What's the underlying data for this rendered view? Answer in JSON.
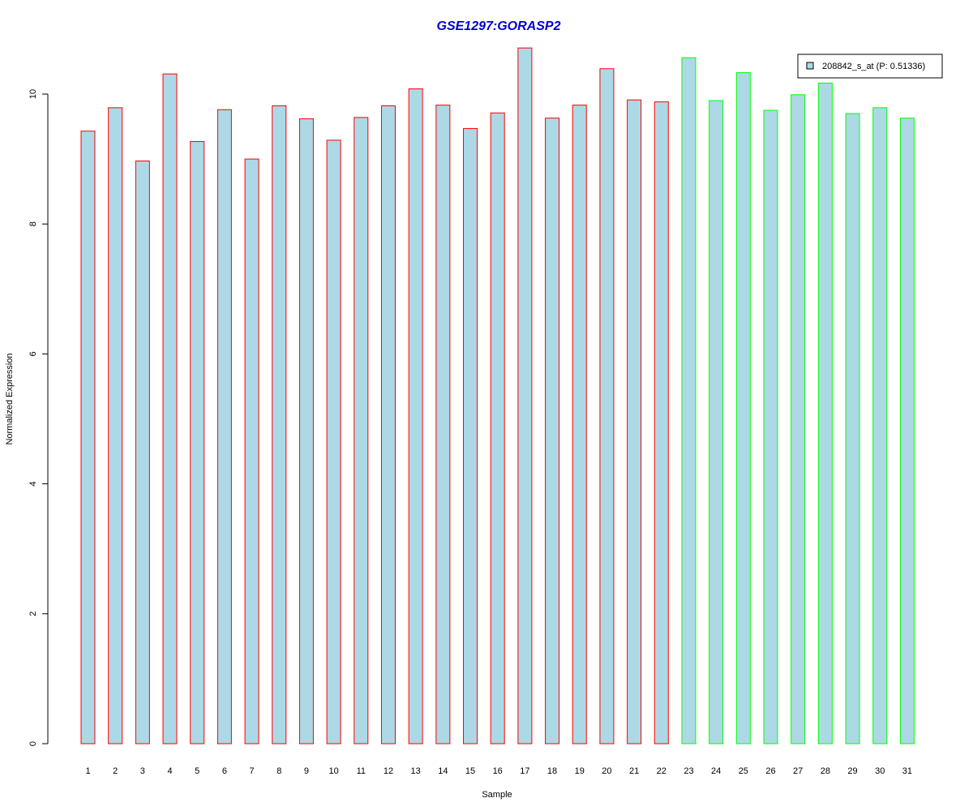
{
  "chart_data": {
    "type": "bar",
    "title": "GSE1297:GORASP2",
    "xlabel": "Sample",
    "ylabel": "Normalized Expression",
    "ylim": [
      0,
      10.8
    ],
    "yticks": [
      "0",
      "2",
      "4",
      "6",
      "8",
      "10"
    ],
    "categories": [
      "1",
      "2",
      "3",
      "4",
      "5",
      "6",
      "7",
      "8",
      "9",
      "10",
      "11",
      "12",
      "13",
      "14",
      "15",
      "16",
      "17",
      "18",
      "19",
      "20",
      "21",
      "22",
      "23",
      "24",
      "25",
      "26",
      "27",
      "28",
      "29",
      "30",
      "31"
    ],
    "series": [
      {
        "name": "208842_s_at (P: 0.51336)",
        "values": [
          9.43,
          9.79,
          8.97,
          10.31,
          9.27,
          9.76,
          9.0,
          9.82,
          9.62,
          9.29,
          9.64,
          9.82,
          10.08,
          9.83,
          9.47,
          9.71,
          10.71,
          9.63,
          9.83,
          10.39,
          9.91,
          9.88,
          10.56,
          9.9,
          10.33,
          9.75,
          9.99,
          10.17,
          9.7,
          9.79,
          9.63
        ]
      }
    ],
    "bar_groups": [
      "red",
      "red",
      "red",
      "red",
      "red",
      "red",
      "red",
      "red",
      "red",
      "red",
      "red",
      "red",
      "red",
      "red",
      "red",
      "red",
      "red",
      "red",
      "red",
      "red",
      "red",
      "red",
      "green",
      "green",
      "green",
      "green",
      "green",
      "green",
      "green",
      "green",
      "green"
    ],
    "legend_position": "top-right",
    "colors": {
      "bar_fill": "#ADD8E6",
      "outline_group_1": "#FF0000",
      "outline_group_2": "#00FF00",
      "title": "#0000CD",
      "axis": "#000000"
    }
  }
}
